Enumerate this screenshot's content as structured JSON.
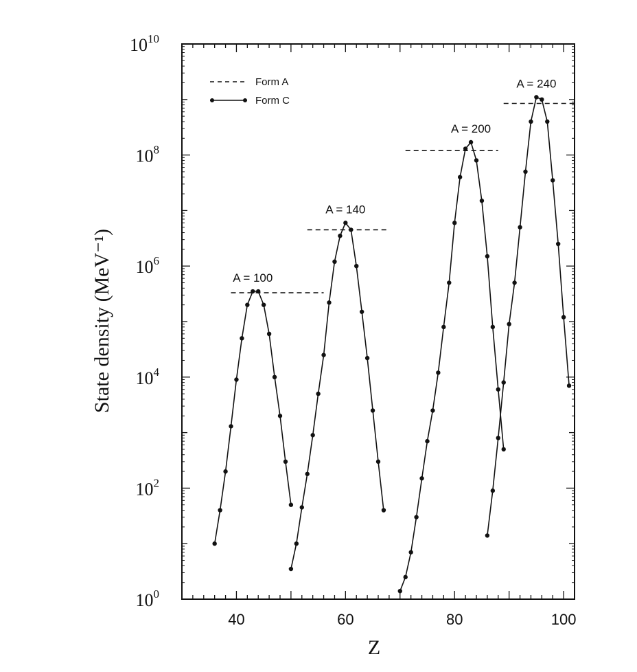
{
  "chart_data": {
    "type": "line",
    "title": "",
    "xlabel": "Z",
    "ylabel": "State density (MeV⁻¹)",
    "xlim": [
      30,
      102
    ],
    "ylim": [
      1,
      10000000000
    ],
    "yscale": "log",
    "xticks": [
      40,
      60,
      80,
      100
    ],
    "yticks": [
      {
        "value": 1,
        "base": "10",
        "exp": "0"
      },
      {
        "value": 100,
        "base": "10",
        "exp": "2"
      },
      {
        "value": 10000,
        "base": "10",
        "exp": "4"
      },
      {
        "value": 1000000,
        "base": "10",
        "exp": "6"
      },
      {
        "value": 100000000,
        "base": "10",
        "exp": "8"
      },
      {
        "value": 10000000000,
        "base": "10",
        "exp": "10"
      }
    ],
    "legend": {
      "position": "top-left",
      "entries": [
        {
          "label": "Form A",
          "style": "dashed"
        },
        {
          "label": "Form C",
          "style": "solid-markers"
        }
      ]
    },
    "annotations": [
      "A = 100",
      "A = 140",
      "A = 200",
      "A = 240"
    ],
    "series": [
      {
        "name": "Form C",
        "group": "A = 100",
        "points": [
          [
            36,
            10
          ],
          [
            37,
            40
          ],
          [
            38,
            200
          ],
          [
            39,
            1300
          ],
          [
            40,
            9000
          ],
          [
            41,
            50000
          ],
          [
            42,
            200000
          ],
          [
            43,
            350000
          ],
          [
            44,
            350000
          ],
          [
            45,
            200000
          ],
          [
            46,
            60000
          ],
          [
            47,
            10000
          ],
          [
            48,
            2000
          ],
          [
            49,
            300
          ],
          [
            50,
            50
          ]
        ]
      },
      {
        "name": "Form C",
        "group": "A = 140",
        "points": [
          [
            50,
            3.5
          ],
          [
            51,
            10
          ],
          [
            52,
            45
          ],
          [
            53,
            180
          ],
          [
            54,
            900
          ],
          [
            55,
            5000
          ],
          [
            56,
            25000
          ],
          [
            57,
            220000
          ],
          [
            58,
            1200000
          ],
          [
            59,
            3500000
          ],
          [
            60,
            6000000
          ],
          [
            61,
            4500000
          ],
          [
            62,
            1000000
          ],
          [
            63,
            150000
          ],
          [
            64,
            22000
          ],
          [
            65,
            2500
          ],
          [
            66,
            300
          ],
          [
            67,
            40
          ]
        ]
      },
      {
        "name": "Form C",
        "group": "A = 200",
        "points": [
          [
            70,
            1.4
          ],
          [
            71,
            2.5
          ],
          [
            72,
            7
          ],
          [
            73,
            30
          ],
          [
            74,
            150
          ],
          [
            75,
            700
          ],
          [
            76,
            2500
          ],
          [
            77,
            12000
          ],
          [
            78,
            80000
          ],
          [
            79,
            500000
          ],
          [
            80,
            6000000
          ],
          [
            81,
            40000000
          ],
          [
            82,
            130000000
          ],
          [
            83,
            170000000
          ],
          [
            84,
            80000000
          ],
          [
            85,
            15000000
          ],
          [
            86,
            1500000
          ],
          [
            87,
            80000
          ],
          [
            88,
            6000
          ],
          [
            89,
            500
          ]
        ]
      },
      {
        "name": "Form C",
        "group": "A = 240",
        "points": [
          [
            86,
            14
          ],
          [
            87,
            90
          ],
          [
            88,
            800
          ],
          [
            89,
            8000
          ],
          [
            90,
            90000
          ],
          [
            91,
            500000
          ],
          [
            92,
            5000000
          ],
          [
            93,
            50000000
          ],
          [
            94,
            400000000
          ],
          [
            95,
            1100000000
          ],
          [
            96,
            1000000000
          ],
          [
            97,
            400000000
          ],
          [
            98,
            35000000
          ],
          [
            99,
            2500000
          ],
          [
            100,
            120000
          ],
          [
            101,
            7000
          ]
        ]
      }
    ],
    "form_a_levels": [
      {
        "group": "A = 100",
        "x": [
          39,
          56
        ],
        "y": 330000
      },
      {
        "group": "A = 140",
        "x": [
          53,
          68
        ],
        "y": 4500000
      },
      {
        "group": "A = 200",
        "x": [
          71,
          88
        ],
        "y": 120000000
      },
      {
        "group": "A = 240",
        "x": [
          89,
          102
        ],
        "y": 850000000
      }
    ]
  }
}
